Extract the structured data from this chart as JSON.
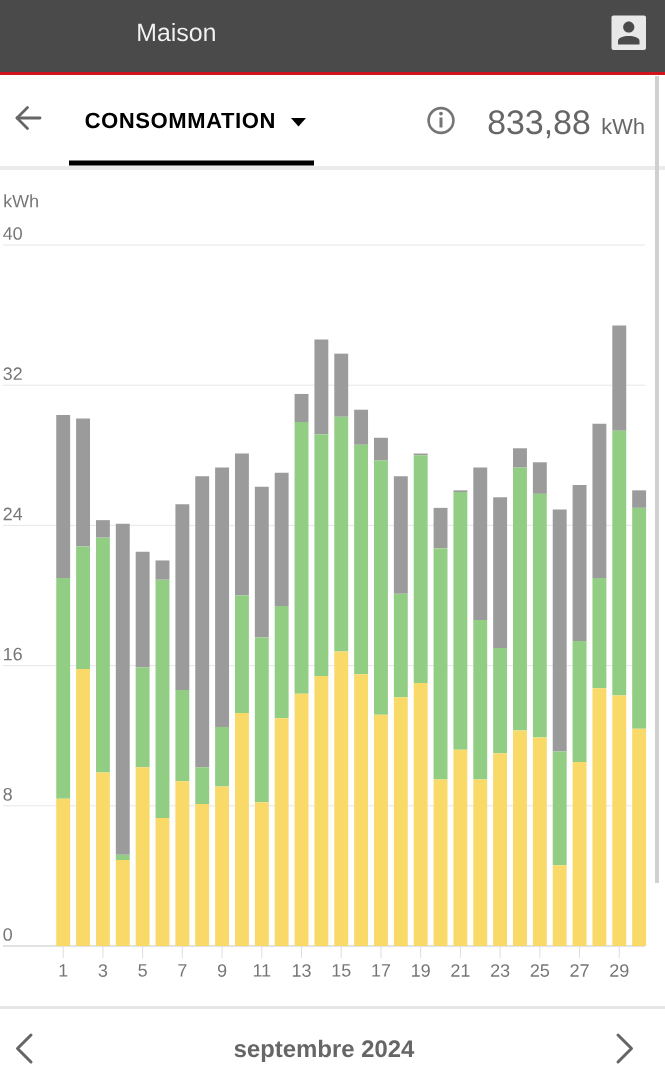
{
  "chart_data": {
    "type": "bar",
    "title": "CONSOMMATION",
    "subtitle": "Maison",
    "ylabel": "kWh",
    "annotations": [
      "833,88",
      "kWh",
      "septembre 2024"
    ],
    "categories": [
      "1",
      null,
      "3",
      null,
      "5",
      null,
      "7",
      null,
      "9",
      null,
      "11",
      null,
      "13",
      null,
      "15",
      null,
      "17",
      null,
      "19",
      null,
      "21",
      null,
      "23",
      null,
      "25",
      null,
      "27",
      null,
      "29",
      null
    ],
    "series": [
      {
        "color": "#f9d967",
        "values": [
          8.4,
          15.8,
          9.9,
          4.9,
          10.2,
          7.3,
          9.4,
          8.1,
          9.1,
          13.3,
          8.2,
          13.0,
          14.4,
          15.4,
          16.8,
          15.5,
          13.2,
          14.2,
          15.0,
          9.5,
          11.2,
          9.5,
          11.0,
          12.3,
          11.9,
          4.6,
          10.5,
          14.7,
          14.3,
          12.4
        ]
      },
      {
        "color": "#92cd84",
        "values": [
          12.6,
          7.0,
          13.4,
          0.3,
          5.7,
          13.6,
          5.2,
          2.1,
          3.4,
          6.7,
          9.4,
          6.4,
          15.5,
          13.8,
          13.4,
          13.1,
          14.5,
          5.9,
          13.0,
          13.2,
          14.7,
          9.1,
          6.0,
          15.0,
          13.9,
          6.5,
          6.9,
          6.3,
          15.1,
          12.6
        ]
      },
      {
        "color": "#9b9b9b",
        "values": [
          9.3,
          7.3,
          1.0,
          18.9,
          6.6,
          1.1,
          10.6,
          16.6,
          14.8,
          8.1,
          8.6,
          7.6,
          1.6,
          5.4,
          3.6,
          2.0,
          1.3,
          6.7,
          0.1,
          2.3,
          0.1,
          8.7,
          8.6,
          1.1,
          1.8,
          13.8,
          8.9,
          8.8,
          6.0,
          1.0
        ]
      }
    ],
    "stacked": true,
    "ylim": [
      0,
      40
    ],
    "yticks": [
      0,
      8,
      16,
      24,
      32,
      40
    ],
    "grid": "y"
  }
}
